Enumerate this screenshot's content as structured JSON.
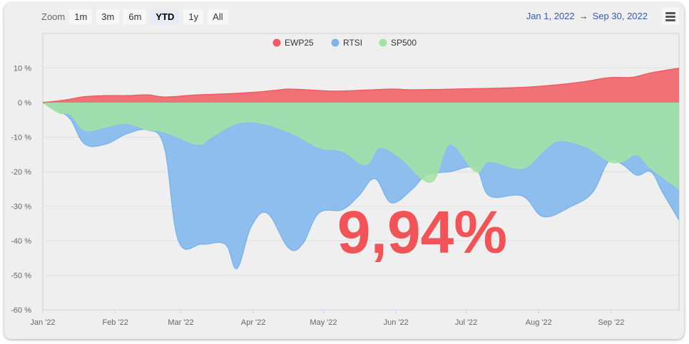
{
  "toolbar": {
    "zoom_label": "Zoom",
    "buttons": [
      "1m",
      "3m",
      "6m",
      "YTD",
      "1y",
      "All"
    ],
    "active": "YTD"
  },
  "range": {
    "from": "Jan 1, 2022",
    "arrow": "→",
    "to": "Sep 30, 2022"
  },
  "big_value": "9,94%",
  "chart_data": {
    "type": "area",
    "ylim": [
      -60,
      20
    ],
    "y_ticks": [
      10,
      0,
      -10,
      -20,
      -30,
      -40,
      -50,
      -60
    ],
    "y_tick_labels": [
      "10 %",
      "0 %",
      "-10 %",
      "-20 %",
      "-30 %",
      "-40 %",
      "-50 %",
      "-60 %"
    ],
    "x_range": [
      "2022-01-01",
      "2022-09-30"
    ],
    "x_ticks": [
      "2022-01-01",
      "2022-02-01",
      "2022-03-01",
      "2022-04-01",
      "2022-05-01",
      "2022-06-01",
      "2022-07-01",
      "2022-08-01",
      "2022-09-01"
    ],
    "x_tick_labels": [
      "Jan '22",
      "Feb '22",
      "Mar '22",
      "Apr '22",
      "May '22",
      "Jun '22",
      "Jul '22",
      "Aug '22",
      "Sep '22"
    ],
    "legend_placement": "top-center",
    "series": [
      {
        "name": "RTSI",
        "color": "#7cb5ec",
        "points": [
          [
            "2022-01-01",
            0
          ],
          [
            "2022-01-08",
            -2.5
          ],
          [
            "2022-01-13",
            -5
          ],
          [
            "2022-01-19",
            -12
          ],
          [
            "2022-01-28",
            -12
          ],
          [
            "2022-02-06",
            -9
          ],
          [
            "2022-02-15",
            -8
          ],
          [
            "2022-02-22",
            -13
          ],
          [
            "2022-02-28",
            -40
          ],
          [
            "2022-03-10",
            -41
          ],
          [
            "2022-03-20",
            -41
          ],
          [
            "2022-03-25",
            -48
          ],
          [
            "2022-03-31",
            -36
          ],
          [
            "2022-04-07",
            -32
          ],
          [
            "2022-04-16",
            -42
          ],
          [
            "2022-04-22",
            -41
          ],
          [
            "2022-04-29",
            -32
          ],
          [
            "2022-05-09",
            -31
          ],
          [
            "2022-05-16",
            -27
          ],
          [
            "2022-05-23",
            -22
          ],
          [
            "2022-05-30",
            -29
          ],
          [
            "2022-06-08",
            -25
          ],
          [
            "2022-06-14",
            -21
          ],
          [
            "2022-06-24",
            -20
          ],
          [
            "2022-07-05",
            -19
          ],
          [
            "2022-07-11",
            -27
          ],
          [
            "2022-07-25",
            -27
          ],
          [
            "2022-08-03",
            -33
          ],
          [
            "2022-08-15",
            -30
          ],
          [
            "2022-08-24",
            -26
          ],
          [
            "2022-08-31",
            -17
          ],
          [
            "2022-09-06",
            -18
          ],
          [
            "2022-09-12",
            -21
          ],
          [
            "2022-09-18",
            -20
          ],
          [
            "2022-09-23",
            -26
          ],
          [
            "2022-09-30",
            -34
          ]
        ]
      },
      {
        "name": "SP500",
        "color": "#a2e3a2",
        "points": [
          [
            "2022-01-01",
            0
          ],
          [
            "2022-01-08",
            -3
          ],
          [
            "2022-01-13",
            -3.5
          ],
          [
            "2022-01-19",
            -8
          ],
          [
            "2022-01-28",
            -7
          ],
          [
            "2022-02-06",
            -6
          ],
          [
            "2022-02-15",
            -8
          ],
          [
            "2022-02-22",
            -8.5
          ],
          [
            "2022-03-08",
            -12
          ],
          [
            "2022-03-14",
            -10
          ],
          [
            "2022-03-25",
            -6
          ],
          [
            "2022-04-05",
            -6
          ],
          [
            "2022-04-18",
            -9
          ],
          [
            "2022-04-29",
            -13
          ],
          [
            "2022-05-09",
            -14
          ],
          [
            "2022-05-19",
            -18
          ],
          [
            "2022-05-25",
            -13
          ],
          [
            "2022-06-03",
            -16
          ],
          [
            "2022-06-16",
            -23
          ],
          [
            "2022-06-24",
            -12
          ],
          [
            "2022-07-05",
            -20
          ],
          [
            "2022-07-11",
            -17
          ],
          [
            "2022-07-25",
            -19
          ],
          [
            "2022-08-03",
            -14
          ],
          [
            "2022-08-10",
            -11
          ],
          [
            "2022-08-22",
            -13
          ],
          [
            "2022-08-31",
            -17
          ],
          [
            "2022-09-06",
            -17
          ],
          [
            "2022-09-12",
            -15
          ],
          [
            "2022-09-18",
            -19
          ],
          [
            "2022-09-30",
            -25
          ]
        ]
      },
      {
        "name": "EWP25",
        "color": "#f15c60",
        "points": [
          [
            "2022-01-01",
            0
          ],
          [
            "2022-01-08",
            0.5
          ],
          [
            "2022-01-13",
            1
          ],
          [
            "2022-01-19",
            1.7
          ],
          [
            "2022-01-28",
            2
          ],
          [
            "2022-02-06",
            2
          ],
          [
            "2022-02-15",
            2.2
          ],
          [
            "2022-02-22",
            1.6
          ],
          [
            "2022-03-08",
            2.2
          ],
          [
            "2022-03-20",
            2.5
          ],
          [
            "2022-03-31",
            2.9
          ],
          [
            "2022-04-10",
            3.5
          ],
          [
            "2022-04-16",
            3.9
          ],
          [
            "2022-04-26",
            3.6
          ],
          [
            "2022-05-06",
            3.3
          ],
          [
            "2022-05-19",
            3.6
          ],
          [
            "2022-05-30",
            3.9
          ],
          [
            "2022-06-08",
            3.7
          ],
          [
            "2022-06-20",
            3.8
          ],
          [
            "2022-07-03",
            4
          ],
          [
            "2022-07-17",
            4.2
          ],
          [
            "2022-07-28",
            4.5
          ],
          [
            "2022-08-10",
            5.2
          ],
          [
            "2022-08-20",
            6
          ],
          [
            "2022-08-31",
            7.2
          ],
          [
            "2022-09-10",
            7.3
          ],
          [
            "2022-09-18",
            8.6
          ],
          [
            "2022-09-30",
            9.94
          ]
        ]
      }
    ],
    "legend": [
      "EWP25",
      "RTSI",
      "SP500"
    ]
  }
}
